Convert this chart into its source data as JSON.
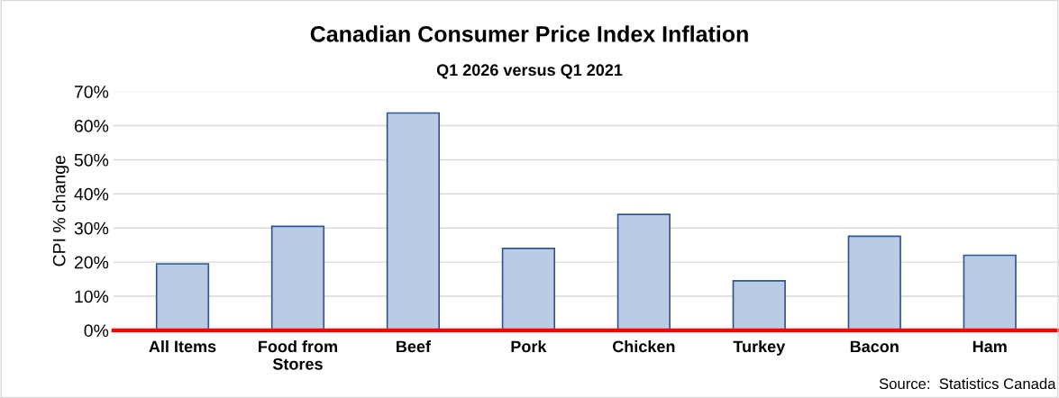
{
  "chart_data": {
    "type": "bar",
    "title": "Canadian Consumer Price Index Inflation",
    "subtitle": "Q1 2026 versus Q1 2021",
    "ylabel": "CPI % change",
    "categories": [
      "All Items",
      "Food from\nStores",
      "Beef",
      "Pork",
      "Chicken",
      "Turkey",
      "Bacon",
      "Ham"
    ],
    "values": [
      19.5,
      30.5,
      63.7,
      24,
      34,
      14.5,
      27.6,
      22
    ],
    "color": "#b8cce4",
    "ylim": [
      0,
      70
    ],
    "yticks": [
      {
        "value": 0,
        "label": "0%"
      },
      {
        "value": 10,
        "label": "10%"
      },
      {
        "value": 20,
        "label": "20%"
      },
      {
        "value": 30,
        "label": "30%"
      },
      {
        "value": 40,
        "label": "40%"
      },
      {
        "value": 50,
        "label": "50%"
      },
      {
        "value": 60,
        "label": "60%"
      },
      {
        "value": 70,
        "label": "70%"
      }
    ],
    "grid": "y",
    "annotations": [
      "Source:  Statistics Canada"
    ]
  }
}
